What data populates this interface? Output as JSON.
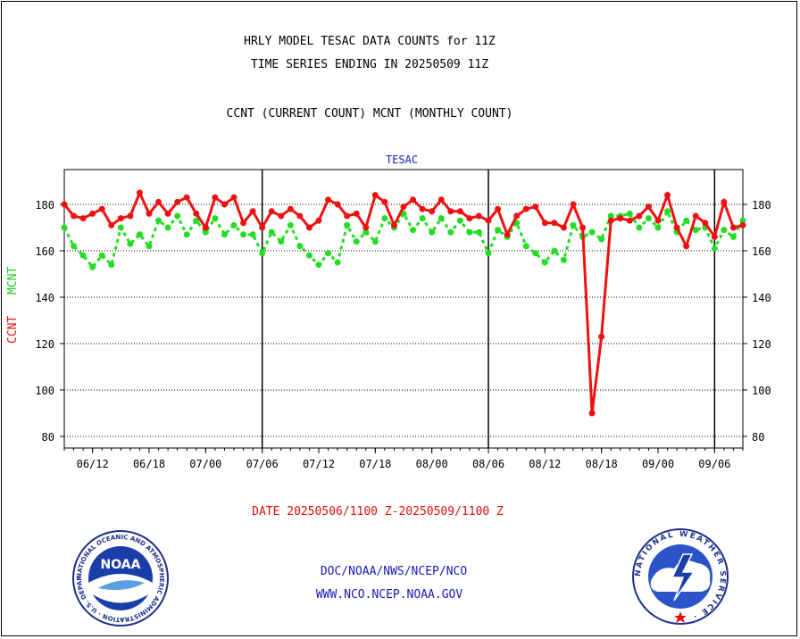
{
  "header": {
    "title_line1": "HRLY MODEL TESAC DATA COUNTS for 11Z",
    "title_line2": "TIME SERIES ENDING IN 20250509 11Z",
    "subtitle": "CCNT (CURRENT COUNT) MCNT (MONTHLY COUNT)"
  },
  "footer": {
    "date_range": "DATE 20250506/1100 Z-20250509/1100 Z",
    "link1": "DOC/NOAA/NWS/NCEP/NCO",
    "link2": "WWW.NCO.NCEP.NOAA.GOV"
  },
  "logos": {
    "noaa_text": "NOAA",
    "noaa_ring": "NATIONAL OCEANIC AND ATMOSPHERIC ADMINISTRATION · U.S. DEPARTMENT OF COMMERCE ·",
    "nws_ring": "NATIONAL WEATHER SERVICE ·"
  },
  "colors": {
    "ccnt": "#ee1111",
    "mcnt": "#22dd22",
    "title_blue": "#1a1ab8",
    "axis": "#000000"
  },
  "chart_data": {
    "type": "line",
    "title": "TESAC",
    "ylabel_ccnt": "CCNT",
    "ylabel_mcnt": "MCNT",
    "ylim": [
      75,
      195
    ],
    "yticks": [
      80,
      100,
      120,
      140,
      160,
      180
    ],
    "xticks": [
      "06/12",
      "06/18",
      "07/00",
      "07/06",
      "07/12",
      "07/18",
      "08/00",
      "08/06",
      "08/12",
      "08/18",
      "09/00",
      "09/06"
    ],
    "xrange_hours": [
      -3,
      69
    ],
    "major_ticks": [
      "07/06",
      "08/06",
      "09/06"
    ],
    "grid": true,
    "series": [
      {
        "name": "CCNT",
        "color": "#ee1111",
        "x": [
          -3,
          -2,
          -1,
          0,
          1,
          2,
          3,
          4,
          5,
          6,
          7,
          8,
          9,
          10,
          11,
          12,
          13,
          14,
          15,
          16,
          17,
          18,
          19,
          20,
          21,
          22,
          23,
          24,
          25,
          26,
          27,
          28,
          29,
          30,
          31,
          32,
          33,
          34,
          35,
          36,
          37,
          38,
          39,
          40,
          41,
          42,
          43,
          44,
          45,
          46,
          47,
          48,
          49,
          50,
          51,
          52,
          53,
          54,
          55,
          56,
          57,
          58,
          59,
          60,
          61,
          62,
          63,
          64,
          65,
          66,
          67,
          68,
          69
        ],
        "values": [
          180,
          175,
          174,
          176,
          178,
          171,
          174,
          175,
          185,
          176,
          181,
          176,
          181,
          183,
          176,
          170,
          183,
          180,
          183,
          172,
          177,
          170,
          177,
          175,
          178,
          175,
          170,
          173,
          182,
          180,
          175,
          176,
          170,
          184,
          181,
          171,
          179,
          182,
          178,
          177,
          182,
          177,
          177,
          174,
          175,
          173,
          178,
          167,
          175,
          178,
          179,
          172,
          172,
          170,
          180,
          170,
          90,
          123,
          173,
          174,
          173,
          175,
          179,
          173,
          184,
          170,
          162,
          175,
          172,
          166,
          181,
          170,
          171
        ]
      },
      {
        "name": "MCNT",
        "color": "#22dd22",
        "x": [
          -3,
          -2,
          -1,
          0,
          1,
          2,
          3,
          4,
          5,
          6,
          7,
          8,
          9,
          10,
          11,
          12,
          13,
          14,
          15,
          16,
          17,
          18,
          19,
          20,
          21,
          22,
          23,
          24,
          25,
          26,
          27,
          28,
          29,
          30,
          31,
          32,
          33,
          34,
          35,
          36,
          37,
          38,
          39,
          40,
          41,
          42,
          43,
          44,
          45,
          46,
          47,
          48,
          49,
          50,
          51,
          52,
          53,
          54,
          55,
          56,
          57,
          58,
          59,
          60,
          61,
          62,
          63,
          64,
          65,
          66,
          67,
          68,
          69
        ],
        "values": [
          170,
          162,
          158,
          153,
          158,
          154,
          170,
          163,
          167,
          162,
          173,
          170,
          175,
          167,
          173,
          168,
          174,
          167,
          171,
          167,
          167,
          159,
          168,
          164,
          171,
          162,
          158,
          154,
          159,
          155,
          171,
          164,
          168,
          164,
          174,
          170,
          176,
          169,
          174,
          168,
          174,
          168,
          173,
          168,
          168,
          159,
          169,
          166,
          172,
          162,
          159,
          155,
          160,
          156,
          171,
          166,
          168,
          165,
          175,
          175,
          176,
          170,
          174,
          170,
          177,
          168,
          173,
          169,
          170,
          161,
          169,
          166,
          173
        ]
      }
    ]
  }
}
